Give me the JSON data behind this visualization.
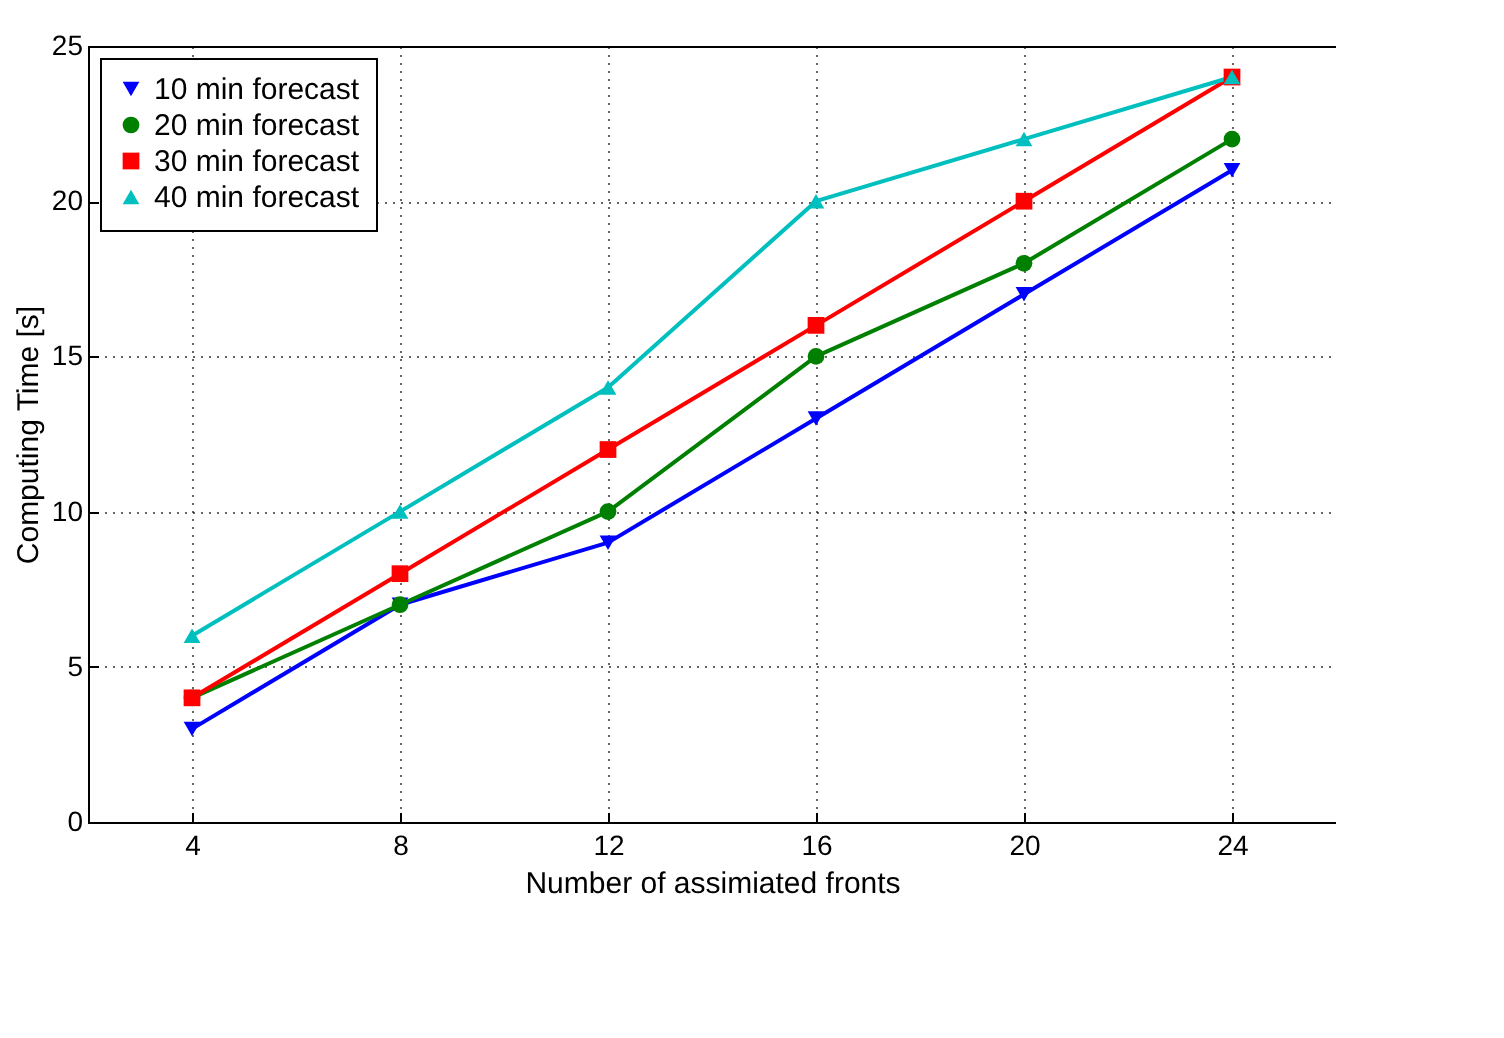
{
  "chart_data": {
    "type": "line",
    "xlabel": "Number of assimiated fronts",
    "ylabel": "Computing Time [s]",
    "x": [
      4,
      8,
      12,
      16,
      20,
      24
    ],
    "xlim": [
      2,
      26
    ],
    "xticks": [
      4,
      8,
      12,
      16,
      20,
      24
    ],
    "ylim": [
      0,
      25
    ],
    "yticks": [
      0,
      5,
      10,
      15,
      20,
      25
    ],
    "grid": true,
    "legend": "top left",
    "line_style": "solid",
    "series": [
      {
        "name": "10 min forecast",
        "color": "#0000ff",
        "marker": "triangle-down",
        "values": [
          3,
          7,
          9,
          13,
          17,
          21
        ]
      },
      {
        "name": "20 min forecast",
        "color": "#008000",
        "marker": "circle",
        "values": [
          4,
          7,
          10,
          15,
          18,
          22
        ]
      },
      {
        "name": "30 min forecast",
        "color": "#ff0000",
        "marker": "square",
        "values": [
          4,
          8,
          12,
          16,
          20,
          24
        ]
      },
      {
        "name": "40 min forecast",
        "color": "#00bfbf",
        "marker": "triangle",
        "values": [
          6,
          10,
          14,
          20,
          22,
          24
        ]
      }
    ]
  }
}
